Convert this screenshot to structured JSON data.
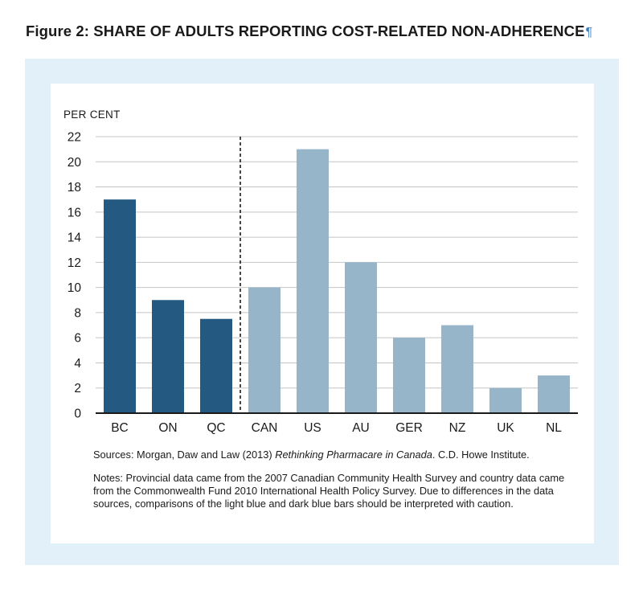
{
  "title": "Figure 2: SHARE OF ADULTS REPORTING COST-RELATED NON-ADHERENCE",
  "title_mark": "¶",
  "sources": {
    "prefix": "Sources: Morgan, Daw and Law (2013) ",
    "title_italic": "Rethinking Pharmacare in Canada",
    "suffix": ". C.D. Howe Institute."
  },
  "notes": "Notes: Provincial data came from the 2007 Canadian Community Health Survey and country data came from the Commonwealth Fund 2010 International Health Policy Survey. Due to differences in the data sources, comparisons of the light blue and dark blue bars should be interpreted with caution.",
  "colors": {
    "frame": "#e2f0fa",
    "provincial_bar": "#245a82",
    "country_bar": "#96b5c9",
    "grid": "#c4c4c4",
    "divider": "#1a1a1a"
  },
  "chart_data": {
    "type": "bar",
    "ylabel": "PER CENT",
    "xlabel": "",
    "ylim": [
      0,
      22
    ],
    "yticks": [
      0,
      2,
      4,
      6,
      8,
      10,
      12,
      14,
      16,
      18,
      20,
      22
    ],
    "grid": true,
    "categories": [
      "BC",
      "ON",
      "QC",
      "CAN",
      "US",
      "AU",
      "GER",
      "NZ",
      "UK",
      "NL"
    ],
    "values": [
      17,
      9,
      7.5,
      10,
      21,
      12,
      6,
      7,
      2,
      3
    ],
    "groups": [
      "provincial",
      "provincial",
      "provincial",
      "country",
      "country",
      "country",
      "country",
      "country",
      "country",
      "country"
    ],
    "divider_after": "QC"
  }
}
